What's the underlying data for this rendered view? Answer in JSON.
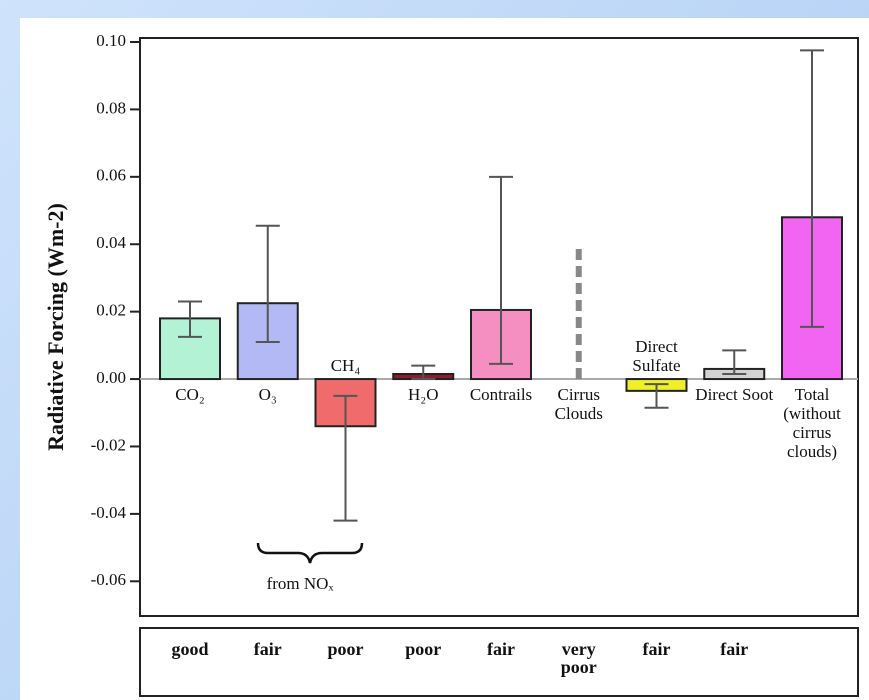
{
  "chart_data": {
    "type": "bar",
    "ylabel": "Radiative Forcing (Wm-2)",
    "categories": [
      "CO₂",
      "O₃",
      "CH₄",
      "H₂O",
      "Contrails",
      "Cirrus Clouds",
      "Direct Sulfate",
      "Direct Soot",
      "Total (without cirrus clouds)"
    ],
    "series": [
      {
        "values": [
          0.018,
          0.0225,
          -0.014,
          0.0015,
          0.0205,
          null,
          -0.0035,
          0.003,
          0.048
        ],
        "low": [
          0.0125,
          0.011,
          -0.042,
          0,
          0.0045,
          0,
          -0.0085,
          0.0015,
          0.0155
        ],
        "high": [
          0.023,
          0.0455,
          -0.005,
          0.004,
          0.06,
          0.04,
          -0.0015,
          0.0085,
          0.0975
        ],
        "colors": [
          "#b4f2d6",
          "#b2b9f4",
          "#f06c6c",
          "#8c1c2e",
          "#f58fc2",
          "#888888",
          "#eef02a",
          "#d2d2d2",
          "#f264f2"
        ]
      }
    ],
    "ylim": [
      -0.07,
      0.1
    ],
    "yticks": [
      {
        "value": 0.1,
        "label": "0.10"
      },
      0.08,
      0.06,
      0.04,
      0.02,
      {
        "value": 0,
        "label": "0.00"
      },
      -0.02,
      -0.04,
      -0.06
    ],
    "annotation": "from NOₓ",
    "confidence": [
      "good",
      "fair",
      "poor",
      "poor",
      "fair",
      "very poor",
      "fair",
      "fair"
    ]
  }
}
